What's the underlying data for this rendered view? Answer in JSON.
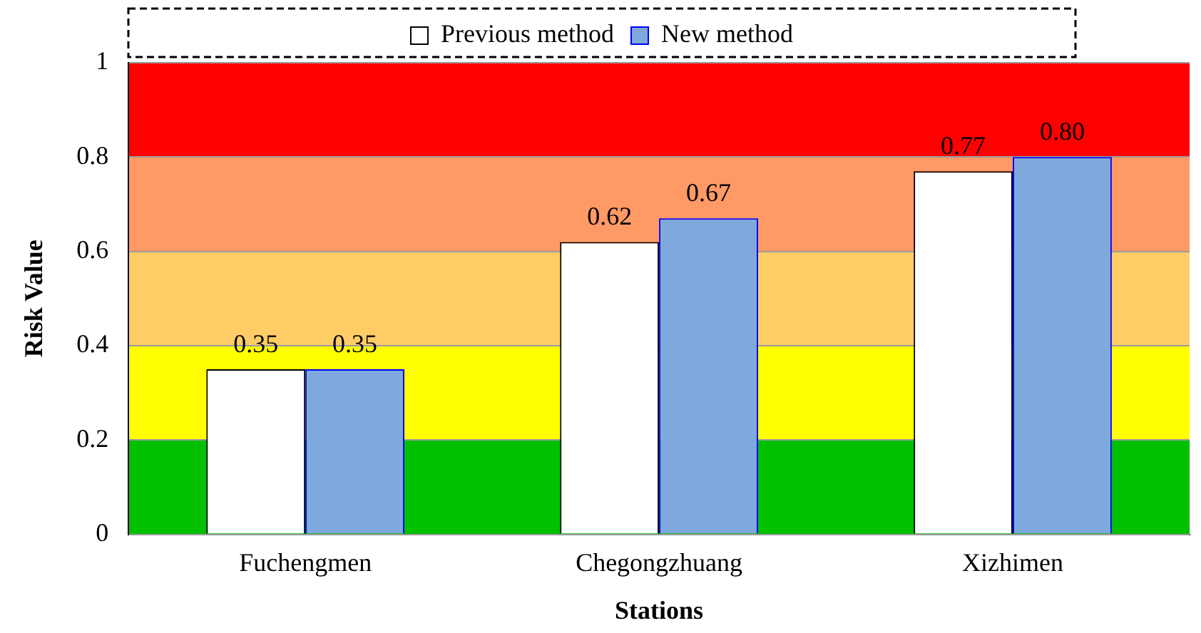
{
  "chart_data": {
    "type": "bar",
    "xlabel": "Stations",
    "ylabel": "Risk Value",
    "categories": [
      "Fuchengmen",
      "Chegongzhuang",
      "Xizhimen"
    ],
    "series": [
      {
        "name": "Previous method",
        "color": "#ffffff",
        "values": [
          0.35,
          0.62,
          0.77
        ],
        "value_labels": [
          "0.35",
          "0.62",
          "0.77"
        ]
      },
      {
        "name": "New method",
        "color": "#7fa9dc",
        "values": [
          0.35,
          0.67,
          0.8
        ],
        "value_labels": [
          "0.35",
          "0.67",
          "0.80"
        ]
      }
    ],
    "ylim": [
      0,
      1
    ],
    "yticks": [
      0,
      0.2,
      0.4,
      0.6,
      0.8,
      1
    ],
    "grid": "y",
    "legend": "top",
    "bands": [
      {
        "axis": "y",
        "from": 0,
        "to": 0.2,
        "color": "#00c000"
      },
      {
        "axis": "y",
        "from": 0.2,
        "to": 0.4,
        "color": "#ffff00"
      },
      {
        "axis": "y",
        "from": 0.4,
        "to": 0.6,
        "color": "#ffcc66"
      },
      {
        "axis": "y",
        "from": 0.6,
        "to": 0.8,
        "color": "#ff9966"
      },
      {
        "axis": "y",
        "from": 0.8,
        "to": 1,
        "color": "#ff0000"
      }
    ]
  }
}
